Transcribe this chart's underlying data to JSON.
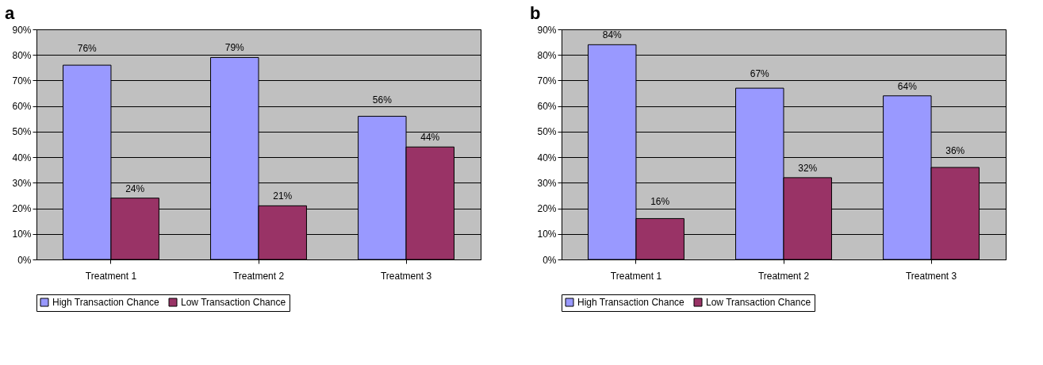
{
  "chart_data": [
    {
      "type": "bar",
      "title": "a",
      "categories": [
        "Treatment 1",
        "Treatment 2",
        "Treatment 3"
      ],
      "series": [
        {
          "name": "High Transaction Chance",
          "color": "#9999ff",
          "values": [
            76,
            79,
            56
          ],
          "value_labels": [
            "76%",
            "79%",
            "56%"
          ]
        },
        {
          "name": "Low Transaction Chance",
          "color": "#993366",
          "values": [
            24,
            21,
            44
          ],
          "value_labels": [
            "24%",
            "21%",
            "44%"
          ]
        }
      ],
      "ylim": [
        0,
        90
      ],
      "yticks": [
        {
          "value": 0,
          "label": "0%"
        },
        {
          "value": 10,
          "label": "10%"
        },
        {
          "value": 20,
          "label": "20%"
        },
        {
          "value": 30,
          "label": "30%"
        },
        {
          "value": 40,
          "label": "40%"
        },
        {
          "value": 50,
          "label": "50%"
        },
        {
          "value": 60,
          "label": "60%"
        },
        {
          "value": 70,
          "label": "70%"
        },
        {
          "value": 80,
          "label": "80%"
        },
        {
          "value": 90,
          "label": "90%"
        }
      ],
      "grid": "y",
      "legend": "bottom"
    },
    {
      "type": "bar",
      "title": "b",
      "categories": [
        "Treatment 1",
        "Treatment 2",
        "Treatment 3"
      ],
      "series": [
        {
          "name": "High Transaction Chance",
          "color": "#9999ff",
          "values": [
            84,
            67,
            64
          ],
          "value_labels": [
            "84%",
            "67%",
            "64%"
          ]
        },
        {
          "name": "Low Transaction Chance",
          "color": "#993366",
          "values": [
            16,
            32,
            36
          ],
          "value_labels": [
            "16%",
            "32%",
            "36%"
          ]
        }
      ],
      "ylim": [
        0,
        90
      ],
      "yticks": [
        {
          "value": 0,
          "label": "0%"
        },
        {
          "value": 10,
          "label": "10%"
        },
        {
          "value": 20,
          "label": "20%"
        },
        {
          "value": 30,
          "label": "30%"
        },
        {
          "value": 40,
          "label": "40%"
        },
        {
          "value": 50,
          "label": "50%"
        },
        {
          "value": 60,
          "label": "60%"
        },
        {
          "value": 70,
          "label": "70%"
        },
        {
          "value": 80,
          "label": "80%"
        },
        {
          "value": 90,
          "label": "90%"
        }
      ],
      "grid": "y",
      "legend": "bottom"
    }
  ]
}
